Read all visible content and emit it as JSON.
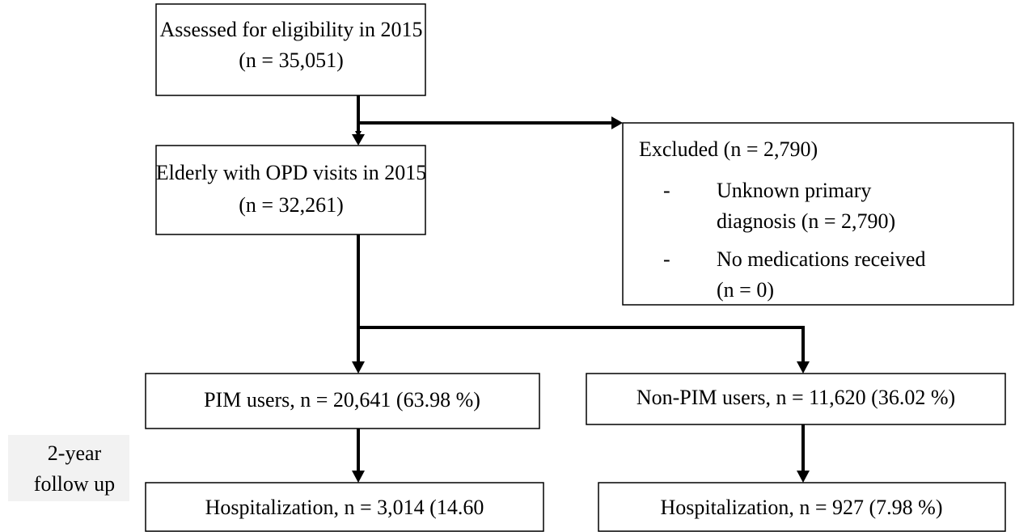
{
  "nodes": [
    {
      "lines": [
        "Assessed for eligibility in 2015",
        "(n = 35,051)"
      ]
    },
    {
      "lines": [
        "Elderly with OPD visits in 2015",
        "(n = 32,261)"
      ]
    },
    {
      "lines": [
        "PIM users, n = 20,641 (63.98 %)"
      ]
    },
    {
      "lines": [
        "Non-PIM users, n = 11,620 (36.02 %)"
      ]
    },
    {
      "lines": [
        "Hospitalization, n = 3,014 (14.60"
      ]
    },
    {
      "lines": [
        "Hospitalization, n = 927 (7.98 %)"
      ]
    }
  ],
  "excluded": {
    "title": "Excluded (n = 2,790)",
    "items": [
      {
        "bullet": "-",
        "lines": [
          "Unknown primary",
          "diagnosis (n = 2,790)"
        ]
      },
      {
        "bullet": "-",
        "lines": [
          "No medications received",
          "(n = 0)"
        ]
      }
    ]
  },
  "side_label": {
    "lines": [
      "2-year",
      "follow up"
    ]
  }
}
